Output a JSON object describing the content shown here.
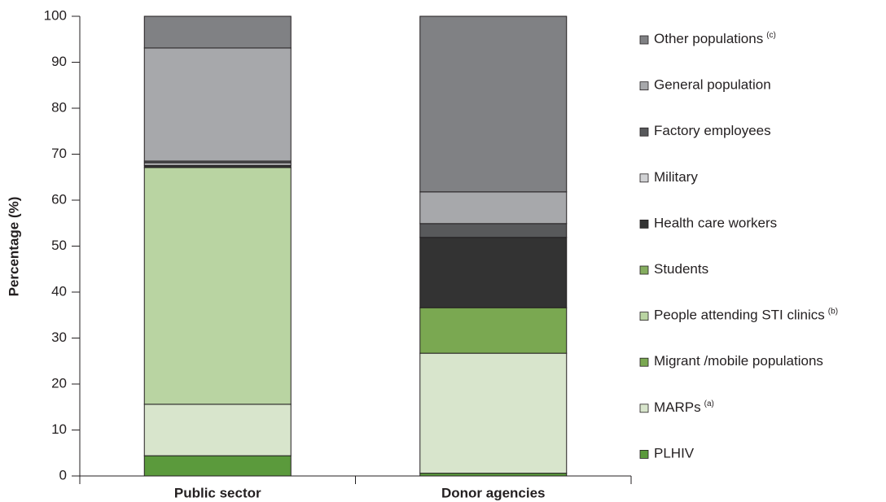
{
  "chart_data": {
    "type": "stacked_bar",
    "y_label": "Percentage (%)",
    "categories": [
      "Public sector",
      "Donor agencies"
    ],
    "ylim": [
      0,
      100
    ],
    "yticks": [
      0,
      10,
      20,
      30,
      40,
      50,
      60,
      70,
      80,
      90,
      100
    ],
    "series": [
      {
        "name": "PLHIV",
        "color": "#5b9a3c",
        "values": [
          4.4,
          0.6
        ]
      },
      {
        "name": "MARPs",
        "note": "(a)",
        "color": "#d8e5cc",
        "values": [
          11.2,
          26.1
        ]
      },
      {
        "name": "Migrant /mobile populations",
        "color": "#7aa851",
        "values": [
          0,
          9.9
        ]
      },
      {
        "name": "People attending STI clinics",
        "note": "(b)",
        "color": "#b9d4a2",
        "values": [
          51.5,
          0
        ]
      },
      {
        "name": "Students",
        "color": "#85ad5f",
        "values": [
          0,
          0
        ]
      },
      {
        "name": "Health care workers",
        "color": "#333333",
        "values": [
          0.5,
          15.3
        ]
      },
      {
        "name": "Military",
        "color": "#d1d2d4",
        "values": [
          0.5,
          0
        ]
      },
      {
        "name": "Factory employees",
        "color": "#58595b",
        "values": [
          0.4,
          3.0
        ]
      },
      {
        "name": "General population",
        "color": "#a7a8ab",
        "values": [
          24.6,
          6.9
        ]
      },
      {
        "name": "Other populations",
        "note": "(c)",
        "color": "#808184",
        "values": [
          6.9,
          38.2
        ]
      }
    ],
    "legend": "right"
  }
}
